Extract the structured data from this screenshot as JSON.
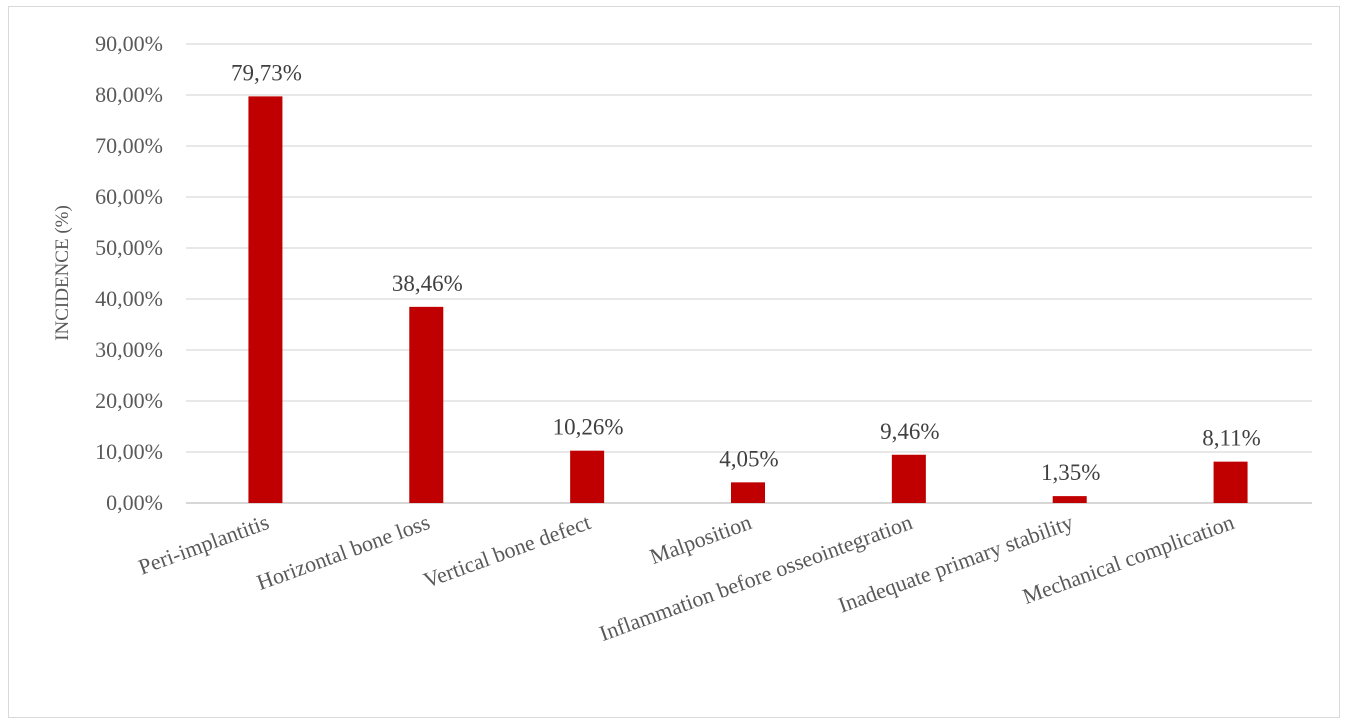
{
  "chart_data": {
    "type": "bar",
    "title": "",
    "xlabel": "",
    "ylabel": "INCIDENCE (%)",
    "ylim": [
      0,
      90
    ],
    "y_ticks": [
      "0,00%",
      "10,00%",
      "20,00%",
      "30,00%",
      "40,00%",
      "50,00%",
      "60,00%",
      "70,00%",
      "80,00%",
      "90,00%"
    ],
    "grid": true,
    "legend": "none",
    "categories": [
      "Peri-implantitis",
      "Horizontal bone loss",
      "Vertical bone defect",
      "Malposition",
      "Inflammation before osseointegration",
      "Inadequate primary stability",
      "Mechanical complication"
    ],
    "values": [
      79.73,
      38.46,
      10.26,
      4.05,
      9.46,
      1.35,
      8.11
    ],
    "value_labels": [
      "79,73%",
      "38,46%",
      "10,26%",
      "4,05%",
      "9,46%",
      "1,35%",
      "8,11%"
    ],
    "colors": {
      "bar": "#c00000",
      "grid": "#d9d9d9",
      "axis": "#bfbfbf"
    }
  }
}
